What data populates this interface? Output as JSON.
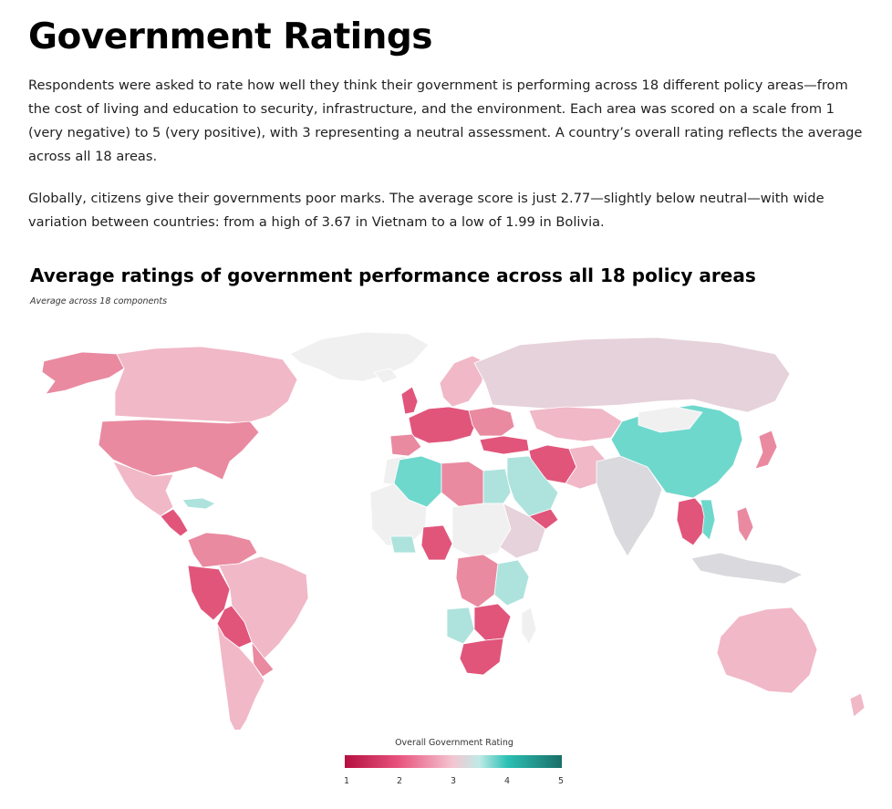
{
  "header": {
    "title": "Government Ratings",
    "paragraph_1": "Respondents were asked to rate how well they think their government is performing across 18 different policy areas—from the cost of living and education to security, infrastructure, and the environment. Each area was scored on a scale from 1 (very negative) to 5 (very positive), with 3 representing a neutral assessment. A country’s overall rating reflects the average across all 18 areas.",
    "paragraph_2": "Globally, citizens give their governments poor marks. The average score is just 2.77—slightly below neutral—with wide variation between countries: from a high of 3.67 in Vietnam to a low of 1.99 in Bolivia."
  },
  "map": {
    "title": "Average ratings of government performance across all 18 policy areas",
    "subtitle": "Average across 18 components",
    "legend": {
      "title": "Overall Government Rating",
      "ticks": [
        "1",
        "2",
        "3",
        "4",
        "5"
      ],
      "colors": [
        "#b5103f",
        "#e8547e",
        "#f3c6d2",
        "#bfeae6",
        "#2bc0b4",
        "#1a6e68"
      ]
    },
    "colors": {
      "no_data": "#f0f0f0",
      "mid_gray": "#d9d9de",
      "light_pink": "#f1b8c7",
      "pink": "#e98aa0",
      "deep_pink": "#e1557b",
      "light_teal": "#aee3dd",
      "teal": "#6fd8cd"
    }
  }
}
